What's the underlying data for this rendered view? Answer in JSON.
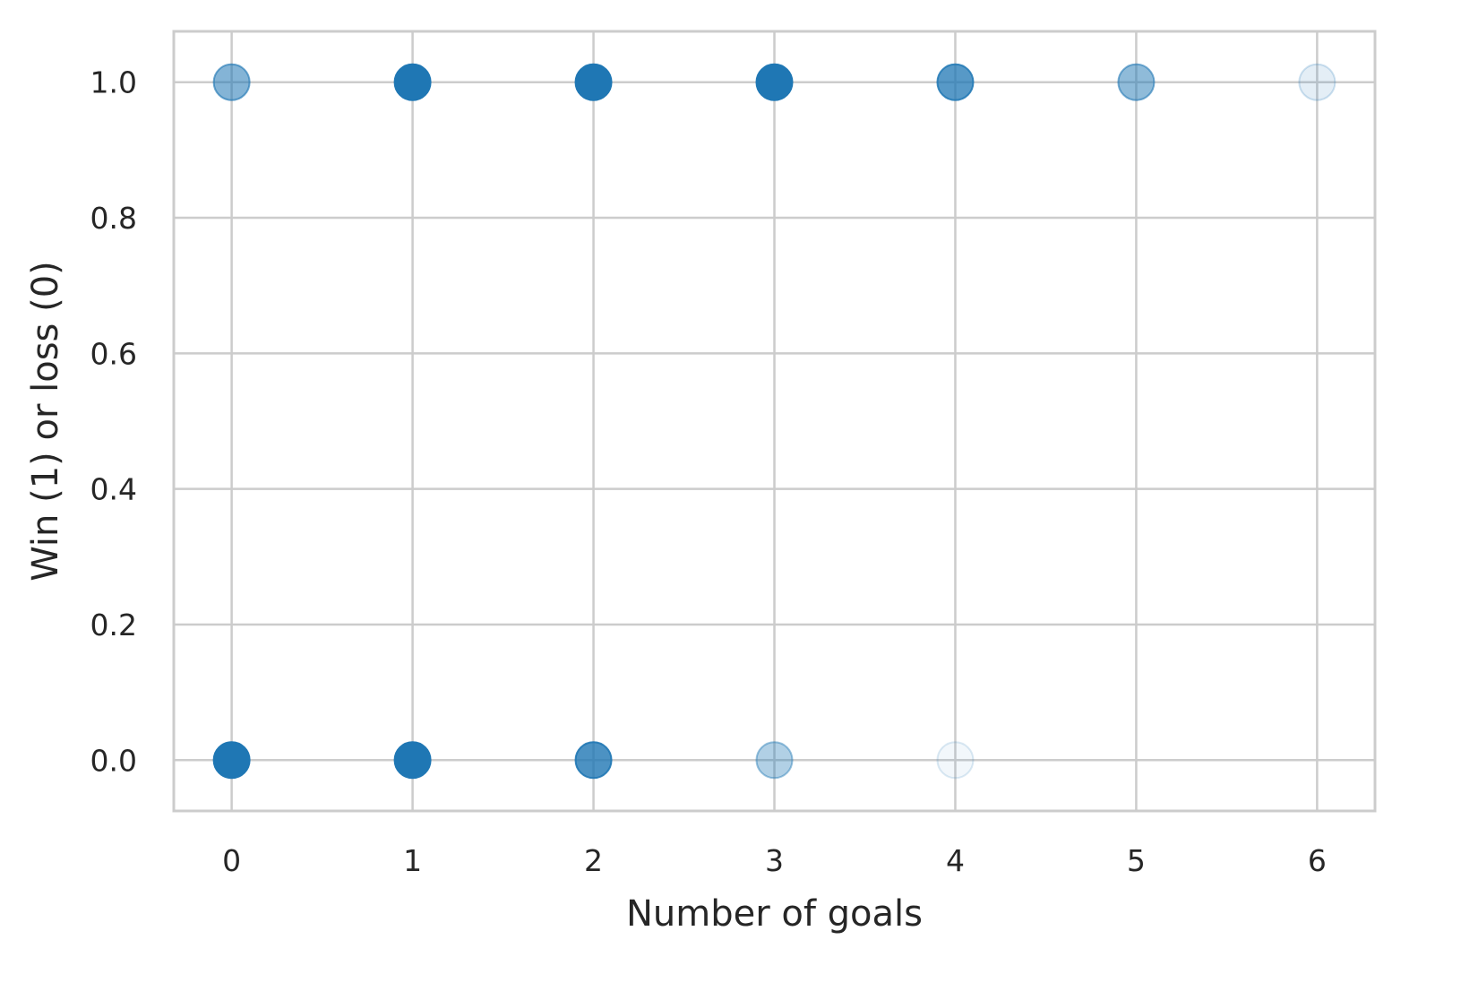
{
  "chart_data": {
    "type": "scatter",
    "title": "",
    "xlabel": "Number of goals",
    "ylabel": "Win (1) or loss (0)",
    "xlim": [
      -0.32,
      6.32
    ],
    "ylim": [
      -0.075,
      1.075
    ],
    "x_ticks": [
      "0",
      "1",
      "2",
      "3",
      "4",
      "5",
      "6"
    ],
    "y_ticks": [
      "0.0",
      "0.2",
      "0.4",
      "0.6",
      "0.8",
      "1.0"
    ],
    "grid": true,
    "marker_color": "#1f77b4",
    "points": [
      {
        "x": 0,
        "y": 1,
        "opacity": 0.55
      },
      {
        "x": 1,
        "y": 1,
        "opacity": 1.0
      },
      {
        "x": 2,
        "y": 1,
        "opacity": 1.0
      },
      {
        "x": 3,
        "y": 1,
        "opacity": 1.0
      },
      {
        "x": 4,
        "y": 1,
        "opacity": 0.75
      },
      {
        "x": 5,
        "y": 1,
        "opacity": 0.5
      },
      {
        "x": 6,
        "y": 1,
        "opacity": 0.12
      },
      {
        "x": 0,
        "y": 0,
        "opacity": 1.0
      },
      {
        "x": 1,
        "y": 0,
        "opacity": 1.0
      },
      {
        "x": 2,
        "y": 0,
        "opacity": 0.8
      },
      {
        "x": 3,
        "y": 0,
        "opacity": 0.35
      },
      {
        "x": 4,
        "y": 0,
        "opacity": 0.06
      }
    ]
  }
}
